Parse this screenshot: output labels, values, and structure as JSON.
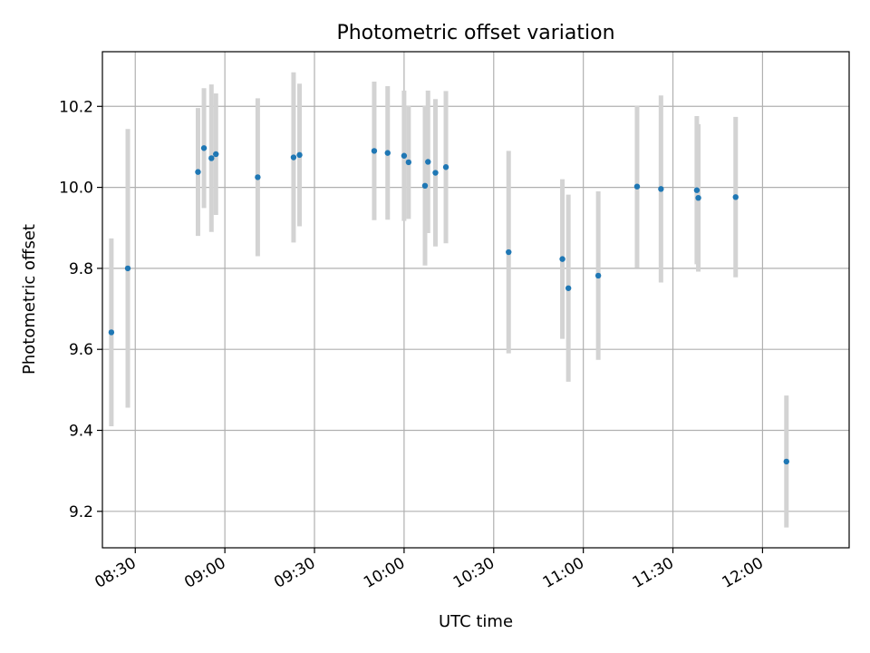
{
  "chart_data": {
    "type": "scatter",
    "title": "Photometric offset variation",
    "xlabel": "UTC time",
    "ylabel": "Photometric offset",
    "xlim": [
      "08:19",
      "12:29"
    ],
    "ylim": [
      9.11,
      10.335
    ],
    "x_ticks": [
      "08:30",
      "09:00",
      "09:30",
      "10:00",
      "10:30",
      "11:00",
      "11:30",
      "12:00"
    ],
    "y_ticks": [
      9.2,
      9.4,
      9.6,
      9.8,
      10.0,
      10.2
    ],
    "grid": true,
    "colors": {
      "marker": "#1f77b4",
      "errorbar": "#d3d3d3",
      "grid": "#b0b0b0"
    },
    "series": [
      {
        "points": [
          {
            "x": "08:22:00",
            "y": 9.642,
            "yerr": 0.232
          },
          {
            "x": "08:27:30",
            "y": 9.8,
            "yerr": 0.344
          },
          {
            "x": "08:51:00",
            "y": 10.038,
            "yerr": 0.158
          },
          {
            "x": "08:53:00",
            "y": 10.097,
            "yerr": 0.148
          },
          {
            "x": "08:55:30",
            "y": 10.072,
            "yerr": 0.182
          },
          {
            "x": "08:57:00",
            "y": 10.082,
            "yerr": 0.15
          },
          {
            "x": "09:11:00",
            "y": 10.025,
            "yerr": 0.195
          },
          {
            "x": "09:23:00",
            "y": 10.074,
            "yerr": 0.21
          },
          {
            "x": "09:25:00",
            "y": 10.08,
            "yerr": 0.176
          },
          {
            "x": "09:50:00",
            "y": 10.09,
            "yerr": 0.171
          },
          {
            "x": "09:54:30",
            "y": 10.085,
            "yerr": 0.165
          },
          {
            "x": "10:00:00",
            "y": 10.078,
            "yerr": 0.161
          },
          {
            "x": "10:01:30",
            "y": 10.062,
            "yerr": 0.14
          },
          {
            "x": "10:07:00",
            "y": 10.004,
            "yerr": 0.197
          },
          {
            "x": "10:08:00",
            "y": 10.063,
            "yerr": 0.176
          },
          {
            "x": "10:10:30",
            "y": 10.036,
            "yerr": 0.182
          },
          {
            "x": "10:14:00",
            "y": 10.05,
            "yerr": 0.188
          },
          {
            "x": "10:35:00",
            "y": 9.84,
            "yerr": 0.25
          },
          {
            "x": "10:53:00",
            "y": 9.823,
            "yerr": 0.197
          },
          {
            "x": "10:55:00",
            "y": 9.751,
            "yerr": 0.231
          },
          {
            "x": "11:05:00",
            "y": 9.782,
            "yerr": 0.208
          },
          {
            "x": "11:18:00",
            "y": 10.002,
            "yerr": 0.2
          },
          {
            "x": "11:26:00",
            "y": 9.996,
            "yerr": 0.231
          },
          {
            "x": "11:38:00",
            "y": 9.993,
            "yerr": 0.183
          },
          {
            "x": "11:38:30",
            "y": 9.974,
            "yerr": 0.182
          },
          {
            "x": "11:51:00",
            "y": 9.976,
            "yerr": 0.198
          },
          {
            "x": "12:08:00",
            "y": 9.323,
            "yerr": 0.163
          }
        ]
      }
    ]
  }
}
